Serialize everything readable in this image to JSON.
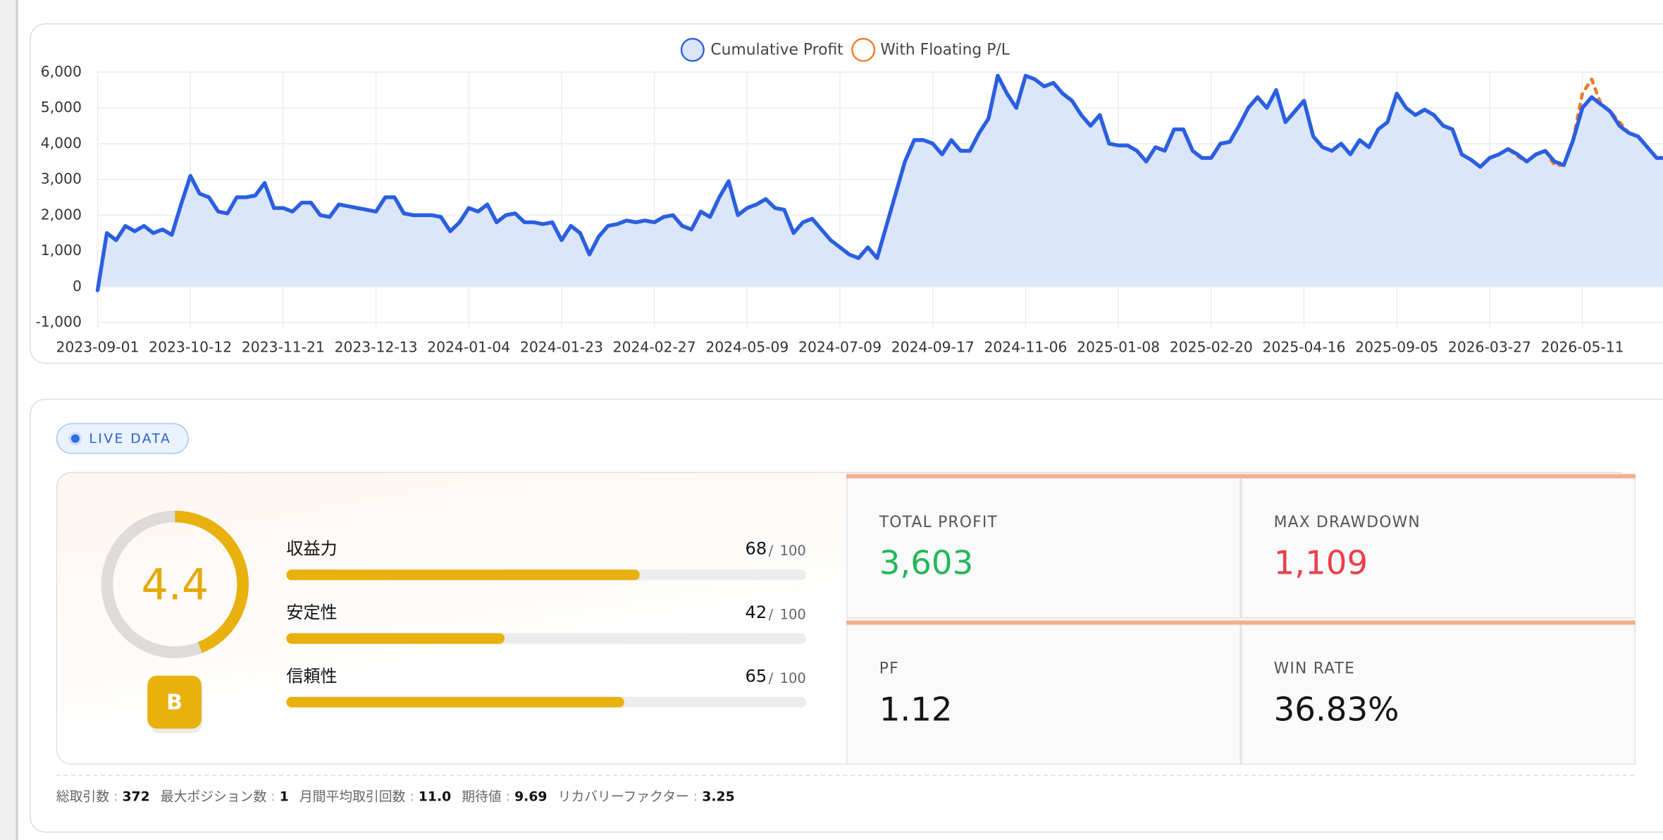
{
  "chart_data": {
    "type": "line",
    "categories": [
      "2023-09-01",
      null,
      null,
      null,
      null,
      null,
      null,
      null,
      null,
      null,
      "2023-10-12",
      null,
      null,
      null,
      null,
      null,
      null,
      null,
      null,
      null,
      "2023-11-21",
      null,
      null,
      null,
      null,
      null,
      null,
      null,
      null,
      null,
      "2023-12-13",
      null,
      null,
      null,
      null,
      null,
      null,
      null,
      null,
      null,
      "2024-01-04",
      null,
      null,
      null,
      null,
      null,
      null,
      null,
      null,
      null,
      "2024-01-23",
      null,
      null,
      null,
      null,
      null,
      null,
      null,
      null,
      null,
      "2024-02-27",
      null,
      null,
      null,
      null,
      null,
      null,
      null,
      null,
      null,
      "2024-05-09",
      null,
      null,
      null,
      null,
      null,
      null,
      null,
      null,
      null,
      "2024-07-09",
      null,
      null,
      null,
      null,
      null,
      null,
      null,
      null,
      null,
      "2024-09-17",
      null,
      null,
      null,
      null,
      null,
      null,
      null,
      null,
      null,
      "2024-11-06",
      null,
      null,
      null,
      null,
      null,
      null,
      null,
      null,
      null,
      "2025-01-08",
      null,
      null,
      null,
      null,
      null,
      null,
      null,
      null,
      null,
      "2025-02-20",
      null,
      null,
      null,
      null,
      null,
      null,
      null,
      null,
      null,
      "2025-04-16",
      null,
      null,
      null,
      null,
      null,
      null,
      null,
      null,
      null,
      "2025-09-05",
      null,
      null,
      null,
      null,
      null,
      null,
      null,
      null,
      null,
      "2026-03-27",
      null,
      null,
      null,
      null,
      null,
      null,
      null,
      null,
      null,
      "2026-05-11",
      null,
      null,
      null,
      null,
      null,
      null,
      null,
      null,
      null
    ],
    "series": [
      {
        "name": "Cumulative Profit",
        "color": "#2b5fe0",
        "fill": "#dbe6fb",
        "values": [
          -100,
          1500,
          1300,
          1700,
          1550,
          1700,
          1500,
          1600,
          1450,
          2300,
          3100,
          2600,
          2500,
          2100,
          2050,
          2500,
          2500,
          2550,
          2900,
          2200,
          2200,
          2100,
          2350,
          2350,
          2000,
          1950,
          2300,
          2250,
          2200,
          2150,
          2100,
          2500,
          2500,
          2050,
          2000,
          2000,
          2000,
          1950,
          1550,
          1800,
          2200,
          2100,
          2300,
          1800,
          2000,
          2050,
          1800,
          1800,
          1750,
          1800,
          1300,
          1700,
          1500,
          900,
          1400,
          1700,
          1750,
          1850,
          1800,
          1850,
          1800,
          1950,
          2000,
          1700,
          1600,
          2100,
          1950,
          2500,
          2950,
          2000,
          2200,
          2300,
          2450,
          2200,
          2150,
          1500,
          1800,
          1900,
          1600,
          1300,
          1100,
          900,
          800,
          1100,
          800,
          1700,
          2600,
          3500,
          4100,
          4100,
          4000,
          3700,
          4100,
          3800,
          3800,
          4300,
          4700,
          5900,
          5400,
          5000,
          5900,
          5800,
          5600,
          5700,
          5400,
          5200,
          4800,
          4500,
          4800,
          4000,
          3950,
          3950,
          3800,
          3500,
          3900,
          3800,
          4400,
          4400,
          3800,
          3600,
          3600,
          4000,
          4050,
          4500,
          5000,
          5300,
          5000,
          5500,
          4600,
          4900,
          5200,
          4200,
          3900,
          3800,
          4000,
          3700,
          4100,
          3900,
          4400,
          4600,
          5400,
          5000,
          4800,
          4950,
          4800,
          4500,
          4400,
          3700,
          3550,
          3350,
          3600,
          3700,
          3850,
          3700,
          3500,
          3700,
          3800,
          3500,
          3400,
          4100,
          5000,
          5300,
          5100,
          4900,
          4500,
          4300,
          4200,
          3900,
          3600,
          3600
        ]
      },
      {
        "name": "With Floating P/L",
        "color": "#f07a2a",
        "values": [
          -100,
          1500,
          1300,
          1700,
          1550,
          1700,
          1500,
          1600,
          1450,
          2300,
          3100,
          2600,
          2500,
          2100,
          2050,
          2500,
          2500,
          2550,
          2900,
          2200,
          2200,
          2100,
          2350,
          2350,
          2000,
          1950,
          2300,
          2250,
          2200,
          2150,
          2100,
          2500,
          2500,
          2050,
          2000,
          2000,
          2000,
          1950,
          1550,
          1800,
          2200,
          2100,
          2300,
          1800,
          2000,
          2050,
          1800,
          1800,
          1750,
          1800,
          1300,
          1700,
          1500,
          900,
          1400,
          1700,
          1750,
          1850,
          1800,
          1850,
          1800,
          1950,
          2000,
          1700,
          1600,
          2100,
          1950,
          2500,
          2950,
          2000,
          2200,
          2300,
          2450,
          2200,
          2150,
          1500,
          1800,
          1900,
          1600,
          1300,
          1100,
          900,
          800,
          1100,
          800,
          1700,
          2600,
          3500,
          4100,
          4100,
          4000,
          3700,
          4100,
          3800,
          3800,
          4300,
          4700,
          5900,
          5400,
          5000,
          5900,
          5800,
          5600,
          5700,
          5400,
          5200,
          4800,
          4500,
          4800,
          4000,
          3950,
          3950,
          3800,
          3500,
          3900,
          3800,
          4400,
          4400,
          3800,
          3600,
          3600,
          4000,
          4050,
          4500,
          5000,
          5300,
          5000,
          5500,
          4600,
          4900,
          5200,
          4200,
          3900,
          3800,
          4000,
          3700,
          4100,
          3900,
          4400,
          4600,
          5400,
          5000,
          4800,
          4950,
          4800,
          4500,
          4400,
          3700,
          3550,
          3350,
          3600,
          3700,
          3850,
          3650,
          3500,
          3700,
          3800,
          3400,
          3400,
          4100,
          5400,
          5800,
          5100,
          4900,
          4600,
          4300,
          4200,
          3900,
          3600,
          3600
        ]
      }
    ],
    "ylim": [
      -1000,
      6000
    ],
    "yticks": [
      {
        "value": -1000,
        "label": "-1,000"
      },
      0,
      {
        "value": 1000,
        "label": "1,000"
      },
      {
        "value": 2000,
        "label": "2,000"
      },
      {
        "value": 3000,
        "label": "3,000"
      },
      {
        "value": 4000,
        "label": "4,000"
      },
      {
        "value": 5000,
        "label": "5,000"
      },
      {
        "value": 6000,
        "label": "6,000"
      }
    ],
    "grid": true,
    "legend": "top"
  },
  "badge": "LIVE DATA",
  "score": {
    "value": 4.4,
    "grade": "B"
  },
  "metrics": [
    {
      "label": "収益力",
      "value": 68,
      "max": 100
    },
    {
      "label": "安定性",
      "value": 42,
      "max": 100
    },
    {
      "label": "信頼性",
      "value": 65,
      "max": 100
    }
  ],
  "stats": [
    {
      "label": "TOTAL PROFIT",
      "value": "3,603",
      "color": "#22b85a"
    },
    {
      "label": "MAX DRAWDOWN",
      "value": "1,109",
      "color": "#ea3f4a"
    },
    {
      "label": "PF",
      "value": "1.12",
      "color": "#141414"
    },
    {
      "label": "WIN RATE",
      "value": "36.83%",
      "color": "#141414"
    }
  ],
  "footer": [
    {
      "label": "総取引数",
      "value": "372"
    },
    {
      "label": "最大ポジション数",
      "value": "1"
    },
    {
      "label": "月間平均取引回数",
      "value": "11.0"
    },
    {
      "label": "期待値",
      "value": "9.69"
    },
    {
      "label": "リカバリーファクター",
      "value": "3.25"
    }
  ]
}
